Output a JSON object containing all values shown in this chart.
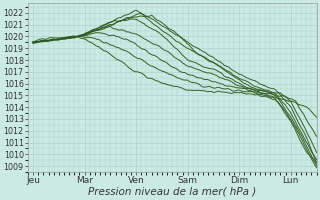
{
  "background_color": "#cceae4",
  "grid_color": "#aad4cc",
  "line_color": "#2d5a1e",
  "ylim": [
    1008.5,
    1022.8
  ],
  "yticks": [
    1009,
    1010,
    1011,
    1012,
    1013,
    1014,
    1015,
    1016,
    1017,
    1018,
    1019,
    1020,
    1021,
    1022
  ],
  "xtick_labels": [
    "Jeu",
    "Mar",
    "Ven",
    "Sam",
    "Dim",
    "Lun"
  ],
  "xtick_positions": [
    0,
    1,
    2,
    3,
    4,
    5
  ],
  "xlabel": "Pression niveau de la mer( hPa )",
  "xlabel_fontsize": 7.5,
  "ytick_fontsize": 5.8,
  "xtick_fontsize": 6.5,
  "xlim": [
    -0.1,
    5.5
  ],
  "series": [
    {
      "points": [
        [
          0,
          1019.5
        ],
        [
          0.9,
          1020.0
        ],
        [
          2.0,
          1022.2
        ],
        [
          2.5,
          1021.0
        ],
        [
          3.0,
          1019.5
        ],
        [
          3.5,
          1018.2
        ],
        [
          4.0,
          1016.8
        ],
        [
          4.3,
          1016.2
        ],
        [
          4.5,
          1015.8
        ],
        [
          4.7,
          1015.5
        ],
        [
          5.0,
          1014.0
        ],
        [
          5.3,
          1011.5
        ],
        [
          5.5,
          1009.2
        ]
      ]
    },
    {
      "points": [
        [
          0,
          1019.5
        ],
        [
          0.9,
          1020.0
        ],
        [
          2.1,
          1022.0
        ],
        [
          2.5,
          1020.5
        ],
        [
          3.0,
          1019.0
        ],
        [
          3.5,
          1017.8
        ],
        [
          4.0,
          1016.5
        ],
        [
          4.3,
          1015.8
        ],
        [
          4.5,
          1015.5
        ],
        [
          4.7,
          1015.2
        ],
        [
          5.0,
          1013.5
        ],
        [
          5.3,
          1011.0
        ],
        [
          5.5,
          1009.5
        ]
      ]
    },
    {
      "points": [
        [
          0,
          1019.5
        ],
        [
          0.9,
          1020.0
        ],
        [
          1.8,
          1021.5
        ],
        [
          2.3,
          1021.8
        ],
        [
          2.8,
          1020.2
        ],
        [
          3.2,
          1018.5
        ],
        [
          3.6,
          1017.5
        ],
        [
          4.0,
          1016.3
        ],
        [
          4.3,
          1015.6
        ],
        [
          4.7,
          1015.0
        ],
        [
          5.0,
          1013.2
        ],
        [
          5.3,
          1010.8
        ],
        [
          5.5,
          1009.0
        ]
      ]
    },
    {
      "points": [
        [
          0,
          1019.5
        ],
        [
          0.9,
          1020.0
        ],
        [
          1.5,
          1021.2
        ],
        [
          2.0,
          1021.5
        ],
        [
          2.6,
          1019.8
        ],
        [
          3.0,
          1018.0
        ],
        [
          3.5,
          1017.2
        ],
        [
          4.0,
          1016.0
        ],
        [
          4.3,
          1015.4
        ],
        [
          4.7,
          1014.8
        ],
        [
          5.0,
          1013.0
        ],
        [
          5.3,
          1010.5
        ],
        [
          5.5,
          1008.8
        ]
      ]
    },
    {
      "points": [
        [
          0,
          1019.5
        ],
        [
          0.9,
          1020.0
        ],
        [
          1.2,
          1020.5
        ],
        [
          1.5,
          1020.8
        ],
        [
          2.0,
          1020.2
        ],
        [
          2.5,
          1019.0
        ],
        [
          3.0,
          1017.5
        ],
        [
          3.5,
          1016.8
        ],
        [
          4.0,
          1015.8
        ],
        [
          4.3,
          1015.2
        ],
        [
          4.7,
          1014.6
        ],
        [
          5.0,
          1012.8
        ],
        [
          5.3,
          1010.2
        ],
        [
          5.5,
          1009.3
        ]
      ]
    },
    {
      "points": [
        [
          0,
          1019.5
        ],
        [
          0.9,
          1020.0
        ],
        [
          1.1,
          1020.2
        ],
        [
          1.3,
          1020.3
        ],
        [
          1.8,
          1019.8
        ],
        [
          2.3,
          1018.5
        ],
        [
          2.8,
          1017.2
        ],
        [
          3.2,
          1016.5
        ],
        [
          3.8,
          1015.8
        ],
        [
          4.3,
          1015.5
        ],
        [
          4.8,
          1015.2
        ],
        [
          5.0,
          1014.5
        ],
        [
          5.3,
          1012.0
        ],
        [
          5.5,
          1010.2
        ]
      ]
    },
    {
      "points": [
        [
          0,
          1019.5
        ],
        [
          0.9,
          1020.0
        ],
        [
          1.0,
          1020.0
        ],
        [
          1.2,
          1019.8
        ],
        [
          1.8,
          1018.8
        ],
        [
          2.3,
          1017.5
        ],
        [
          2.8,
          1016.5
        ],
        [
          3.3,
          1015.8
        ],
        [
          3.8,
          1015.5
        ],
        [
          4.3,
          1015.3
        ],
        [
          4.8,
          1015.0
        ],
        [
          5.1,
          1014.5
        ],
        [
          5.3,
          1013.0
        ],
        [
          5.5,
          1011.5
        ]
      ]
    },
    {
      "points": [
        [
          0,
          1019.5
        ],
        [
          0.2,
          1019.8
        ],
        [
          0.5,
          1019.9
        ],
        [
          0.8,
          1020.0
        ],
        [
          1.0,
          1019.8
        ],
        [
          1.5,
          1018.5
        ],
        [
          2.0,
          1017.0
        ],
        [
          2.5,
          1016.0
        ],
        [
          3.0,
          1015.5
        ],
        [
          3.5,
          1015.3
        ],
        [
          4.0,
          1015.2
        ],
        [
          4.5,
          1015.0
        ],
        [
          5.0,
          1014.5
        ],
        [
          5.3,
          1014.0
        ],
        [
          5.5,
          1013.2
        ]
      ]
    }
  ]
}
